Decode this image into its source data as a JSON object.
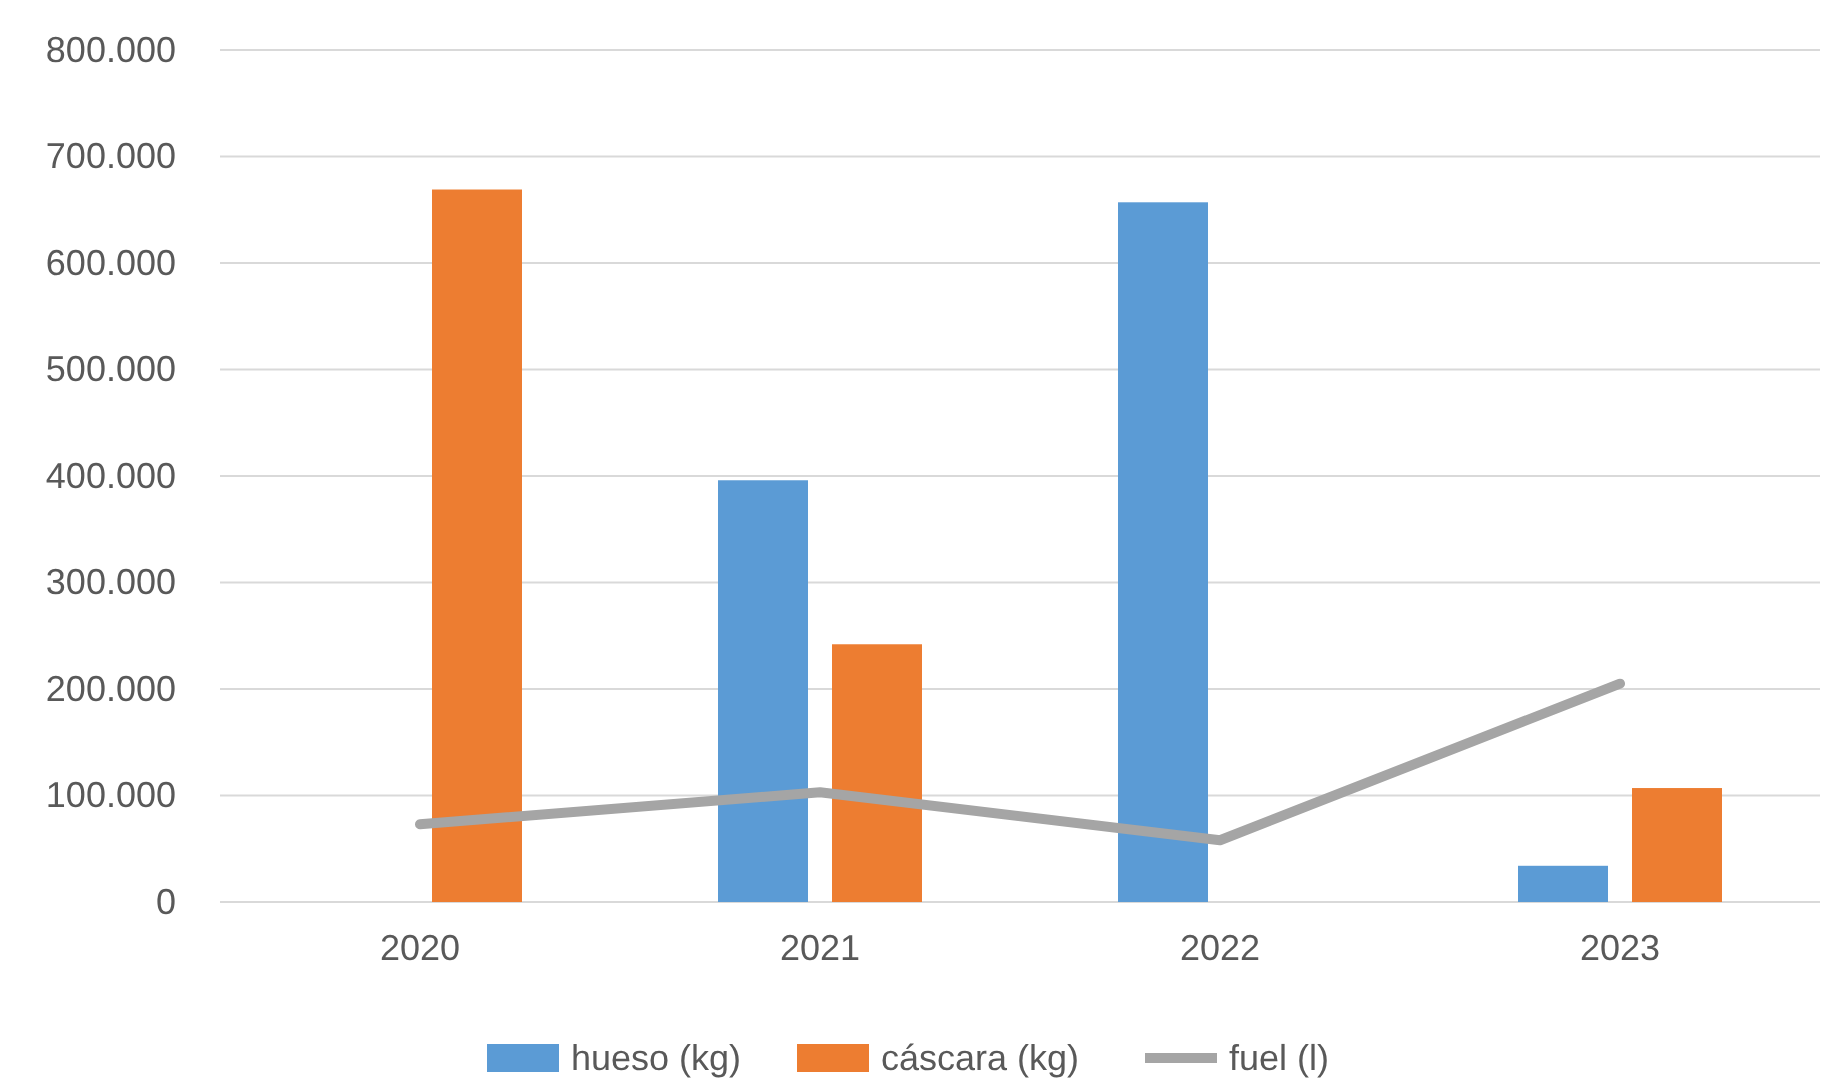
{
  "chart_data": {
    "type": "bar",
    "categories": [
      "2020",
      "2021",
      "2022",
      "2023"
    ],
    "series": [
      {
        "name": "hueso (kg)",
        "color": "#5b9bd5",
        "values": [
          null,
          396000,
          657000,
          34000
        ]
      },
      {
        "name": "cáscara (kg)",
        "color": "#ed7d31",
        "values": [
          669000,
          242000,
          null,
          107000
        ]
      },
      {
        "name": "fuel (l)",
        "type": "line",
        "color": "#a5a5a5",
        "values": [
          73000,
          103000,
          58000,
          205000
        ]
      }
    ],
    "ylim": [
      0,
      800000
    ],
    "yticks": [
      {
        "value": 0,
        "label": "0"
      },
      {
        "value": 100000,
        "label": "100.000"
      },
      {
        "value": 200000,
        "label": "200.000"
      },
      {
        "value": 300000,
        "label": "300.000"
      },
      {
        "value": 400000,
        "label": "400.000"
      },
      {
        "value": 500000,
        "label": "500.000"
      },
      {
        "value": 600000,
        "label": "600.000"
      },
      {
        "value": 700000,
        "label": "700.000"
      },
      {
        "value": 800000,
        "label": "800.000"
      }
    ],
    "grid": "y",
    "legend": "bottom",
    "marker": "none"
  }
}
